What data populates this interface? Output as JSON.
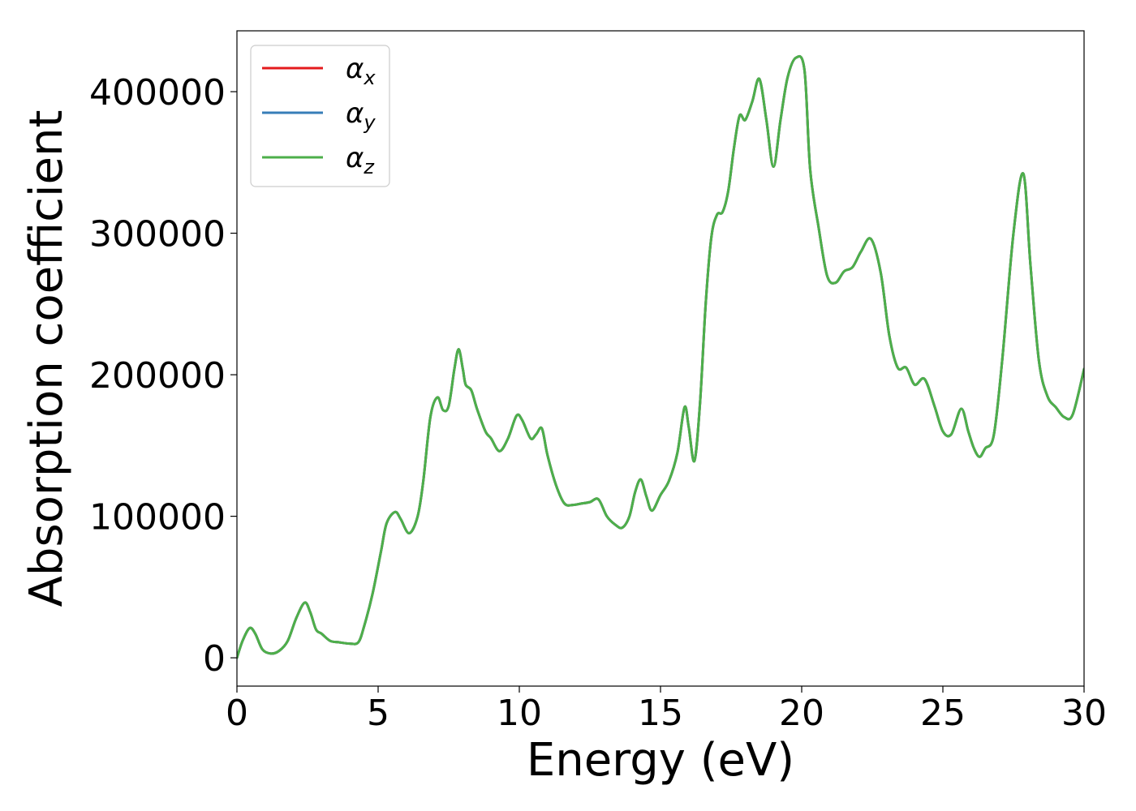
{
  "chart_data": {
    "type": "line",
    "xlabel": "Energy (eV)",
    "ylabel": "Absorption coefficient",
    "xlim": [
      0,
      30
    ],
    "ylim": [
      -20000,
      443000
    ],
    "x_ticks": [
      "0",
      "5",
      "10",
      "15",
      "20",
      "25",
      "30"
    ],
    "y_ticks": [
      "0",
      "100000",
      "200000",
      "300000",
      "400000"
    ],
    "grid": false,
    "legend_position": "top-left",
    "series": [
      {
        "name": "α_x",
        "symbol": "α",
        "subscript": "x",
        "color": "#e41a1c",
        "x": [
          0,
          0.2,
          0.45,
          0.65,
          0.9,
          1.2,
          1.5,
          1.8,
          2.1,
          2.4,
          2.6,
          2.8,
          3.0,
          3.3,
          3.6,
          4.0,
          4.3,
          4.5,
          4.8,
          5.1,
          5.3,
          5.6,
          5.8,
          6.1,
          6.4,
          6.6,
          6.85,
          7.1,
          7.3,
          7.5,
          7.7,
          7.85,
          8.0,
          8.1,
          8.3,
          8.5,
          8.8,
          9.0,
          9.3,
          9.6,
          9.9,
          10.1,
          10.4,
          10.6,
          10.8,
          11.0,
          11.3,
          11.6,
          11.9,
          12.2,
          12.5,
          12.8,
          13.1,
          13.4,
          13.65,
          13.9,
          14.1,
          14.3,
          14.5,
          14.7,
          15.0,
          15.3,
          15.6,
          15.85,
          16.0,
          16.2,
          16.4,
          16.6,
          16.8,
          17.0,
          17.2,
          17.4,
          17.6,
          17.8,
          18.0,
          18.25,
          18.5,
          18.75,
          19.0,
          19.25,
          19.5,
          19.8,
          20.1,
          20.3,
          20.6,
          20.9,
          21.2,
          21.5,
          21.8,
          22.1,
          22.45,
          22.8,
          23.1,
          23.4,
          23.7,
          24.0,
          24.35,
          24.7,
          25.0,
          25.3,
          25.65,
          25.9,
          26.1,
          26.3,
          26.5,
          26.8,
          27.1,
          27.5,
          27.85,
          28.1,
          28.4,
          28.7,
          29.0,
          29.3,
          29.6,
          30.0
        ],
        "y": [
          0,
          12000,
          21000,
          17000,
          6000,
          3000,
          5000,
          12000,
          28000,
          39000,
          32000,
          20000,
          17000,
          12000,
          11000,
          10000,
          11000,
          22000,
          45000,
          75000,
          95000,
          103000,
          98000,
          88000,
          100000,
          125000,
          170000,
          184000,
          175000,
          178000,
          204000,
          218000,
          204000,
          193000,
          189000,
          176000,
          160000,
          155000,
          146000,
          155000,
          171000,
          168000,
          155000,
          158000,
          162000,
          143000,
          122000,
          109000,
          108000,
          109000,
          110000,
          112000,
          100000,
          94000,
          92000,
          100000,
          117000,
          126000,
          114000,
          104000,
          115000,
          125000,
          145000,
          177000,
          163000,
          139000,
          180000,
          250000,
          297000,
          313000,
          315000,
          330000,
          360000,
          383000,
          380000,
          393000,
          409000,
          380000,
          347000,
          380000,
          410000,
          424000,
          415000,
          345000,
          304000,
          270000,
          265000,
          273000,
          276000,
          287000,
          296000,
          272000,
          228000,
          205000,
          205000,
          193000,
          197000,
          178000,
          160000,
          158000,
          176000,
          160000,
          148000,
          142000,
          148000,
          157000,
          210000,
          300000,
          342000,
          278000,
          210000,
          185000,
          177000,
          170000,
          172000,
          204000
        ]
      },
      {
        "name": "α_y",
        "symbol": "α",
        "subscript": "y",
        "color": "#377eb8",
        "x": [
          0,
          0.2,
          0.45,
          0.65,
          0.9,
          1.2,
          1.5,
          1.8,
          2.1,
          2.4,
          2.6,
          2.8,
          3.0,
          3.3,
          3.6,
          4.0,
          4.3,
          4.5,
          4.8,
          5.1,
          5.3,
          5.6,
          5.8,
          6.1,
          6.4,
          6.6,
          6.85,
          7.1,
          7.3,
          7.5,
          7.7,
          7.85,
          8.0,
          8.1,
          8.3,
          8.5,
          8.8,
          9.0,
          9.3,
          9.6,
          9.9,
          10.1,
          10.4,
          10.6,
          10.8,
          11.0,
          11.3,
          11.6,
          11.9,
          12.2,
          12.5,
          12.8,
          13.1,
          13.4,
          13.65,
          13.9,
          14.1,
          14.3,
          14.5,
          14.7,
          15.0,
          15.3,
          15.6,
          15.85,
          16.0,
          16.2,
          16.4,
          16.6,
          16.8,
          17.0,
          17.2,
          17.4,
          17.6,
          17.8,
          18.0,
          18.25,
          18.5,
          18.75,
          19.0,
          19.25,
          19.5,
          19.8,
          20.1,
          20.3,
          20.6,
          20.9,
          21.2,
          21.5,
          21.8,
          22.1,
          22.45,
          22.8,
          23.1,
          23.4,
          23.7,
          24.0,
          24.35,
          24.7,
          25.0,
          25.3,
          25.65,
          25.9,
          26.1,
          26.3,
          26.5,
          26.8,
          27.1,
          27.5,
          27.85,
          28.1,
          28.4,
          28.7,
          29.0,
          29.3,
          29.6,
          30.0
        ],
        "y": [
          0,
          12000,
          21000,
          17000,
          6000,
          3000,
          5000,
          12000,
          28000,
          39000,
          32000,
          20000,
          17000,
          12000,
          11000,
          10000,
          11000,
          22000,
          45000,
          75000,
          95000,
          103000,
          98000,
          88000,
          100000,
          125000,
          170000,
          184000,
          175000,
          178000,
          204000,
          218000,
          204000,
          193000,
          189000,
          176000,
          160000,
          155000,
          146000,
          155000,
          171000,
          168000,
          155000,
          158000,
          162000,
          143000,
          122000,
          109000,
          108000,
          109000,
          110000,
          112000,
          100000,
          94000,
          92000,
          100000,
          117000,
          126000,
          114000,
          104000,
          115000,
          125000,
          145000,
          177000,
          163000,
          139000,
          180000,
          250000,
          297000,
          313000,
          315000,
          330000,
          360000,
          383000,
          380000,
          393000,
          409000,
          380000,
          347000,
          380000,
          410000,
          424000,
          415000,
          345000,
          304000,
          270000,
          265000,
          273000,
          276000,
          287000,
          296000,
          272000,
          228000,
          205000,
          205000,
          193000,
          197000,
          178000,
          160000,
          158000,
          176000,
          160000,
          148000,
          142000,
          148000,
          157000,
          210000,
          300000,
          342000,
          278000,
          210000,
          185000,
          177000,
          170000,
          172000,
          204000
        ]
      },
      {
        "name": "α_z",
        "symbol": "α",
        "subscript": "z",
        "color": "#4daf4a",
        "x": [
          0,
          0.2,
          0.45,
          0.65,
          0.9,
          1.2,
          1.5,
          1.8,
          2.1,
          2.4,
          2.6,
          2.8,
          3.0,
          3.3,
          3.6,
          4.0,
          4.3,
          4.5,
          4.8,
          5.1,
          5.3,
          5.6,
          5.8,
          6.1,
          6.4,
          6.6,
          6.85,
          7.1,
          7.3,
          7.5,
          7.7,
          7.85,
          8.0,
          8.1,
          8.3,
          8.5,
          8.8,
          9.0,
          9.3,
          9.6,
          9.9,
          10.1,
          10.4,
          10.6,
          10.8,
          11.0,
          11.3,
          11.6,
          11.9,
          12.2,
          12.5,
          12.8,
          13.1,
          13.4,
          13.65,
          13.9,
          14.1,
          14.3,
          14.5,
          14.7,
          15.0,
          15.3,
          15.6,
          15.85,
          16.0,
          16.2,
          16.4,
          16.6,
          16.8,
          17.0,
          17.2,
          17.4,
          17.6,
          17.8,
          18.0,
          18.25,
          18.5,
          18.75,
          19.0,
          19.25,
          19.5,
          19.8,
          20.1,
          20.3,
          20.6,
          20.9,
          21.2,
          21.5,
          21.8,
          22.1,
          22.45,
          22.8,
          23.1,
          23.4,
          23.7,
          24.0,
          24.35,
          24.7,
          25.0,
          25.3,
          25.65,
          25.9,
          26.1,
          26.3,
          26.5,
          26.8,
          27.1,
          27.5,
          27.85,
          28.1,
          28.4,
          28.7,
          29.0,
          29.3,
          29.6,
          30.0
        ],
        "y": [
          0,
          12000,
          21000,
          17000,
          6000,
          3000,
          5000,
          12000,
          28000,
          39000,
          32000,
          20000,
          17000,
          12000,
          11000,
          10000,
          11000,
          22000,
          45000,
          75000,
          95000,
          103000,
          98000,
          88000,
          100000,
          125000,
          170000,
          184000,
          175000,
          178000,
          204000,
          218000,
          204000,
          193000,
          189000,
          176000,
          160000,
          155000,
          146000,
          155000,
          171000,
          168000,
          155000,
          158000,
          162000,
          143000,
          122000,
          109000,
          108000,
          109000,
          110000,
          112000,
          100000,
          94000,
          92000,
          100000,
          117000,
          126000,
          114000,
          104000,
          115000,
          125000,
          145000,
          177000,
          163000,
          139000,
          180000,
          250000,
          297000,
          313000,
          315000,
          330000,
          360000,
          383000,
          380000,
          393000,
          409000,
          380000,
          347000,
          380000,
          410000,
          424000,
          415000,
          345000,
          304000,
          270000,
          265000,
          273000,
          276000,
          287000,
          296000,
          272000,
          228000,
          205000,
          205000,
          193000,
          197000,
          178000,
          160000,
          158000,
          176000,
          160000,
          148000,
          142000,
          148000,
          157000,
          210000,
          300000,
          342000,
          278000,
          210000,
          185000,
          177000,
          170000,
          172000,
          204000
        ]
      }
    ]
  }
}
